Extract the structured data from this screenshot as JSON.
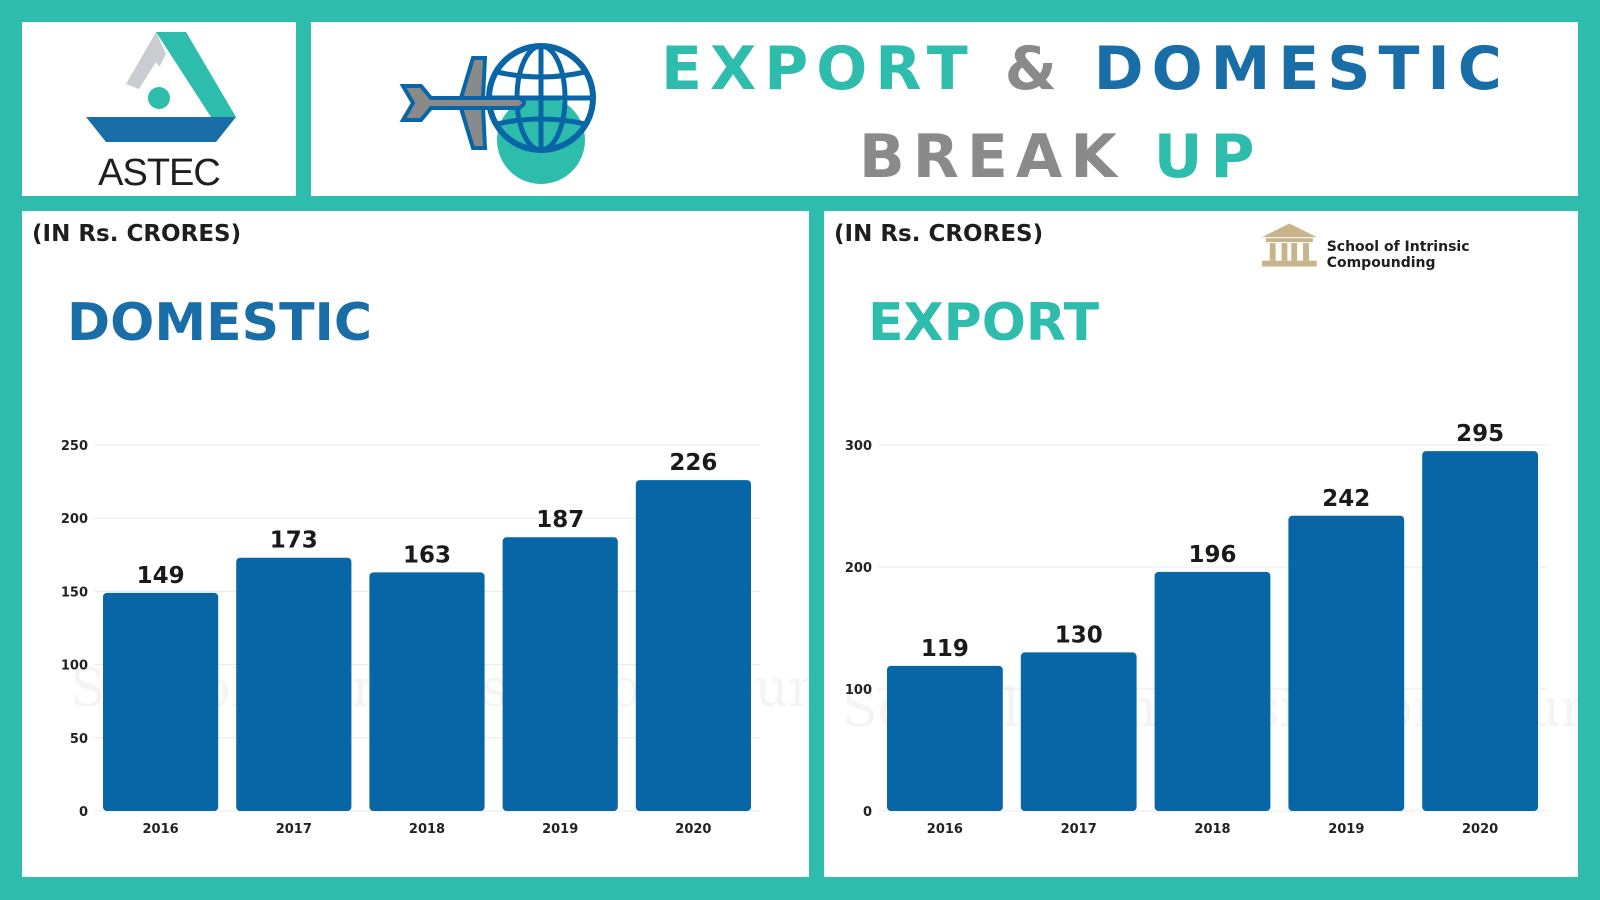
{
  "header": {
    "logo_text": "ASTEC",
    "title_line1": {
      "part1": "EXPORT",
      "part2": "&",
      "part3": "DOMESTIC"
    },
    "title_line2": {
      "part1": "BREAK",
      "part2": "UP"
    }
  },
  "brand": {
    "text": "School of Intrinsic Compounding",
    "icon": "bank-building-icon"
  },
  "watermark": "School of Intrinsic Compounding",
  "colors": {
    "teal": "#2ebdad",
    "blue": "#0866a6",
    "gray": "#8a8a8a"
  },
  "chart_data": [
    {
      "type": "bar",
      "unit_label": "(IN Rs. CRORES)",
      "title": "DOMESTIC",
      "categories": [
        "2016",
        "2017",
        "2018",
        "2019",
        "2020"
      ],
      "values": [
        149,
        173,
        163,
        187,
        226
      ],
      "yticks": [
        0,
        50,
        100,
        150,
        200,
        250
      ],
      "ylim": [
        0,
        250
      ],
      "grid": true
    },
    {
      "type": "bar",
      "unit_label": "(IN Rs. CRORES)",
      "title": "EXPORT",
      "categories": [
        "2016",
        "2017",
        "2018",
        "2019",
        "2020"
      ],
      "values": [
        119,
        130,
        196,
        242,
        295
      ],
      "yticks": [
        0,
        100,
        200,
        300
      ],
      "ylim": [
        0,
        300
      ],
      "grid": true
    }
  ]
}
